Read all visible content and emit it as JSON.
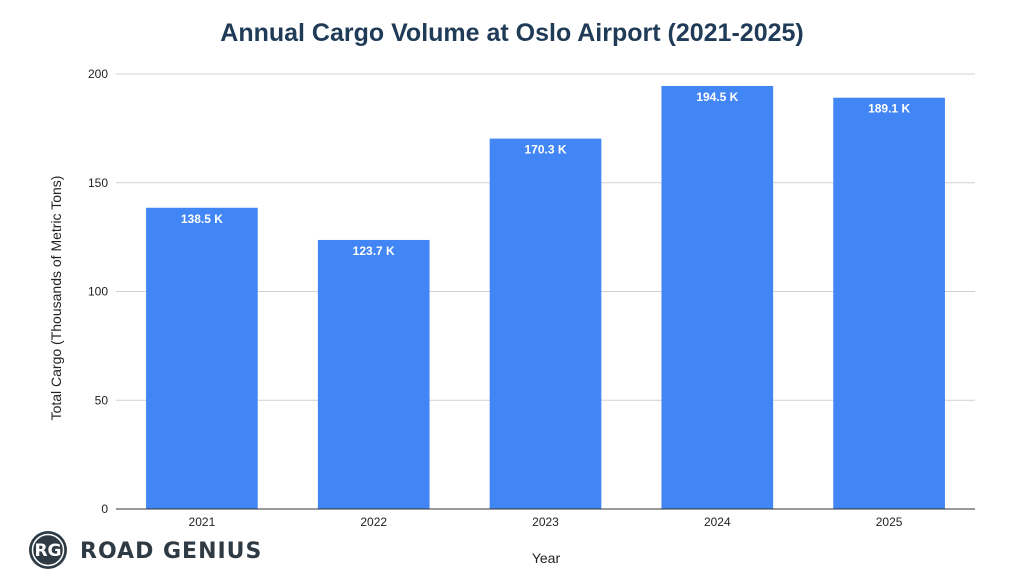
{
  "chart_data": {
    "type": "bar",
    "title": "Annual Cargo Volume at Oslo Airport (2021-2025)",
    "xlabel": "Year",
    "ylabel": "Total Cargo (Thousands of Metric Tons)",
    "categories": [
      "2021",
      "2022",
      "2023",
      "2024",
      "2025"
    ],
    "values": [
      138.5,
      123.7,
      170.3,
      194.5,
      189.1
    ],
    "data_labels": [
      "138.5 K",
      "123.7 K",
      "170.3 K",
      "194.5 K",
      "189.1 K"
    ],
    "yticks": [
      "0",
      "50",
      "100",
      "150",
      "200"
    ],
    "ylim": [
      0,
      200
    ],
    "grid": true,
    "legend": "none",
    "colors": {
      "bar": "#4285f4",
      "grid": "#d0d0d0",
      "axis": "#333333",
      "title": "#1f3b57"
    }
  },
  "watermark": {
    "monogram": "RG",
    "text": "ROAD GENIUS"
  }
}
